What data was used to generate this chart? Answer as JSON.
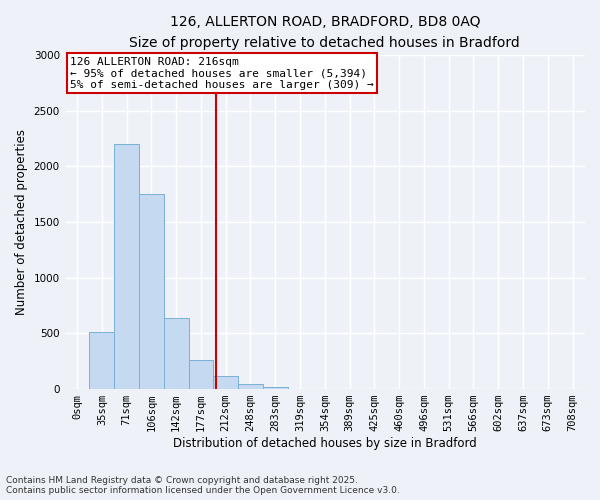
{
  "title_line1": "126, ALLERTON ROAD, BRADFORD, BD8 0AQ",
  "title_line2": "Size of property relative to detached houses in Bradford",
  "xlabel": "Distribution of detached houses by size in Bradford",
  "ylabel": "Number of detached properties",
  "bar_color": "#c5d9f0",
  "bar_edge_color": "#7aafd4",
  "categories": [
    "0sqm",
    "35sqm",
    "71sqm",
    "106sqm",
    "142sqm",
    "177sqm",
    "212sqm",
    "248sqm",
    "283sqm",
    "319sqm",
    "354sqm",
    "389sqm",
    "425sqm",
    "460sqm",
    "496sqm",
    "531sqm",
    "566sqm",
    "602sqm",
    "637sqm",
    "673sqm",
    "708sqm"
  ],
  "values": [
    2,
    510,
    2200,
    1750,
    640,
    260,
    120,
    50,
    20,
    5,
    2,
    1,
    0,
    0,
    0,
    0,
    0,
    0,
    0,
    0,
    0
  ],
  "ylim": [
    0,
    3000
  ],
  "yticks": [
    0,
    500,
    1000,
    1500,
    2000,
    2500,
    3000
  ],
  "vline_index": 5.62,
  "vline_color": "#cc0000",
  "annotation_line1": "126 ALLERTON ROAD: 216sqm",
  "annotation_line2": "← 95% of detached houses are smaller (5,394)",
  "annotation_line3": "5% of semi-detached houses are larger (309) →",
  "annotation_box_color": "#ffffff",
  "annotation_box_edge_color": "#cc0000",
  "footnote_line1": "Contains HM Land Registry data © Crown copyright and database right 2025.",
  "footnote_line2": "Contains public sector information licensed under the Open Government Licence v3.0.",
  "background_color": "#eef2f8",
  "grid_color": "#ffffff",
  "title_fontsize": 10,
  "subtitle_fontsize": 9,
  "axis_label_fontsize": 8.5,
  "tick_fontsize": 7.5,
  "annotation_fontsize": 8,
  "footnote_fontsize": 6.5
}
